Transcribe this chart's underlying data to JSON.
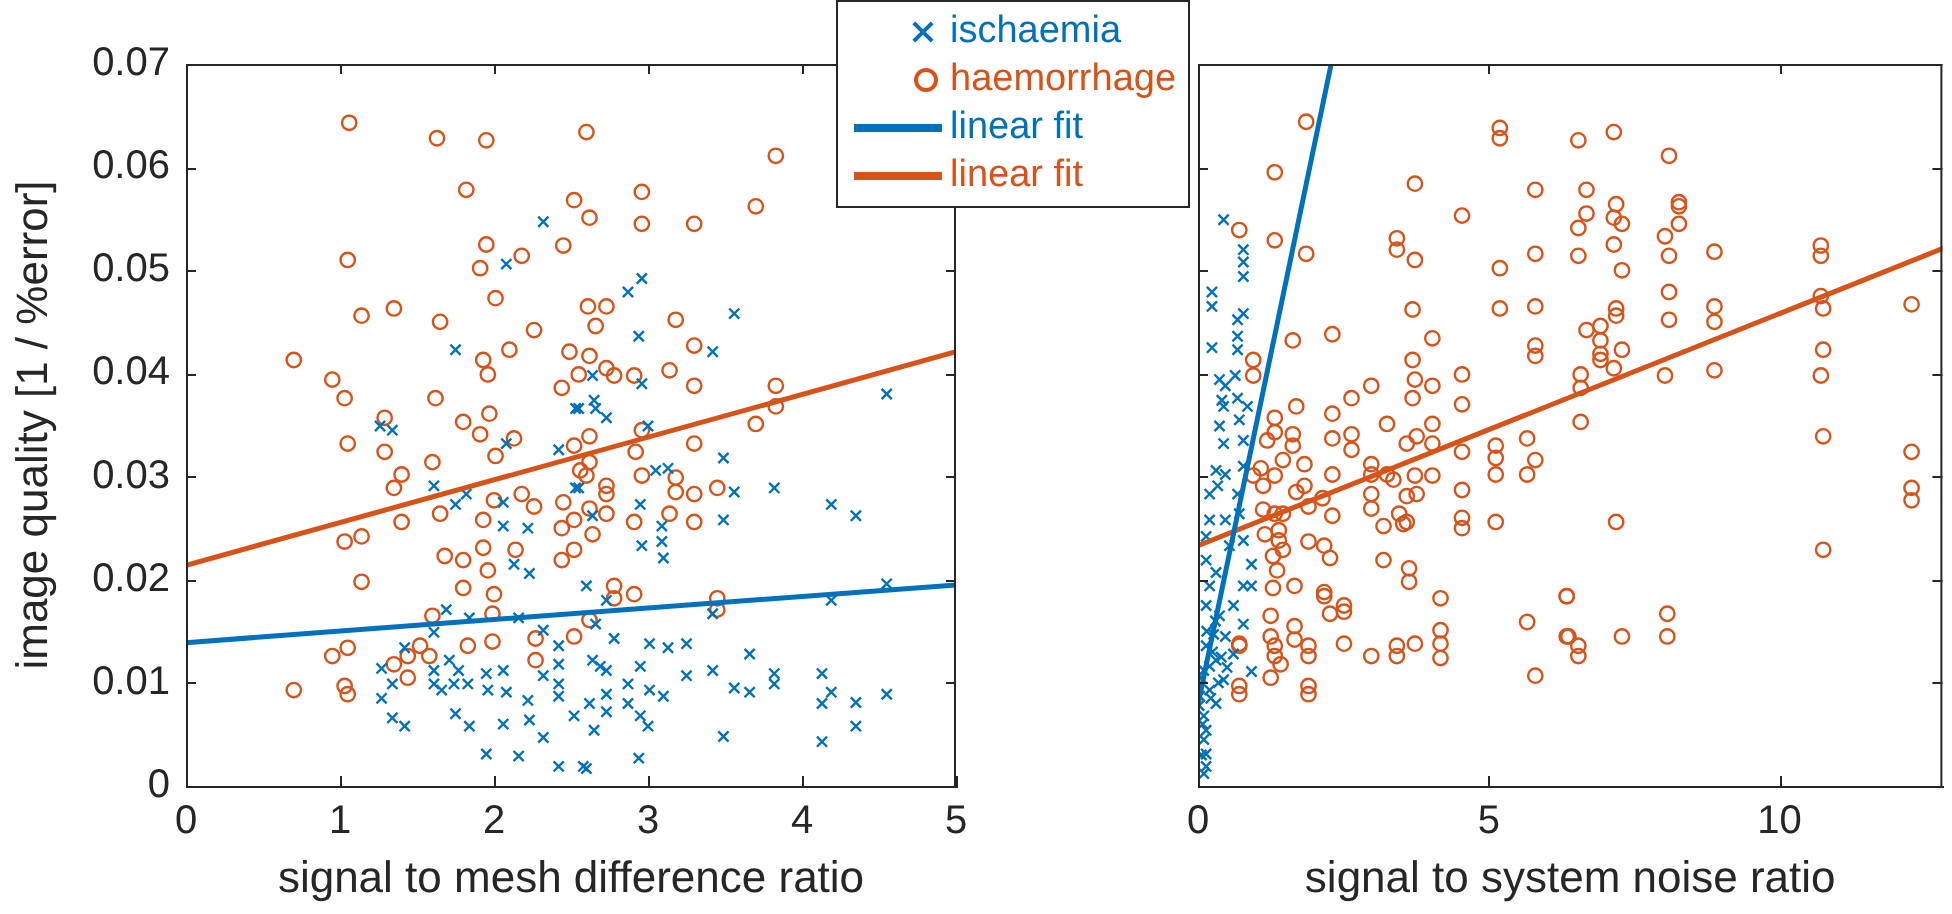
{
  "chart_data": [
    {
      "type": "scatter",
      "xlabel": "signal to mesh difference ratio",
      "ylabel": "image quality [1 / %error]",
      "xlim": [
        0,
        5
      ],
      "xticks": [
        0,
        1,
        2,
        3,
        4,
        5
      ],
      "ylim": [
        0,
        0.07
      ],
      "yticks": [
        0,
        0.01,
        0.02,
        0.03,
        0.04,
        0.05,
        0.06,
        0.07
      ],
      "legend": "top right",
      "series": [
        {
          "name": "ischaemia",
          "color": "#0072bd",
          "marker": "cross",
          "x": [
            2.32,
            2.08,
            1.75,
            1.26,
            1.34,
            2.08,
            1.61,
            1.75,
            1.82,
            2.06,
            2.06,
            2.22,
            2.13,
            2.23,
            1.69,
            1.61,
            1.84,
            2.16,
            2.32,
            1.42,
            1.27,
            1.34,
            1.27,
            1.34,
            1.42,
            1.61,
            1.61,
            1.66,
            1.71,
            1.74,
            1.83,
            1.77,
            1.75,
            1.84,
            1.95,
            1.96,
            2.06,
            2.08,
            2.06,
            1.95,
            2.16,
            2.22,
            2.23,
            2.32,
            2.32,
            2.42,
            2.42,
            2.42,
            2.42,
            2.42,
            2.52,
            2.53,
            2.53,
            2.42,
            2.96,
            2.87,
            3.56,
            2.94,
            3.42,
            2.64,
            2.96,
            2.55,
            2.65,
            2.66,
            2.73,
            4.55,
            3.0,
            3.49,
            3.05,
            3.13,
            2.55,
            3.56,
            3.82,
            2.95,
            4.19,
            4.35,
            2.64,
            3.49,
            3.09,
            2.96,
            3.09,
            3.1,
            2.6,
            2.73,
            4.55,
            4.19,
            3.42,
            2.66,
            2.78,
            3.01,
            3.13,
            3.25,
            2.64,
            2.69,
            2.73,
            2.95,
            3.66,
            3.25,
            3.42,
            2.87,
            3.82,
            3.82,
            4.13,
            3.01,
            3.1,
            3.56,
            3.66,
            4.19,
            4.55,
            2.73,
            2.87,
            2.62,
            2.95,
            3.0,
            2.73,
            2.65,
            4.13,
            4.35,
            4.35,
            3.49,
            4.13,
            2.94,
            2.6,
            2.58
          ],
          "values": [
            0.0547,
            0.0506,
            0.0423,
            0.0349,
            0.0345,
            0.0332,
            0.0291,
            0.0273,
            0.0283,
            0.0275,
            0.0252,
            0.025,
            0.0215,
            0.0206,
            0.0171,
            0.0149,
            0.0163,
            0.0163,
            0.0151,
            0.0134,
            0.0114,
            0.0099,
            0.0085,
            0.0066,
            0.0058,
            0.0112,
            0.0099,
            0.0093,
            0.0122,
            0.0099,
            0.0099,
            0.0112,
            0.007,
            0.0058,
            0.0109,
            0.0093,
            0.0112,
            0.0091,
            0.006,
            0.0031,
            0.0029,
            0.0083,
            0.0064,
            0.0047,
            0.0107,
            0.0136,
            0.0118,
            0.0099,
            0.0087,
            0.0019,
            0.0068,
            0.0366,
            0.0289,
            0.0326,
            0.0492,
            0.0479,
            0.0458,
            0.0436,
            0.0421,
            0.0398,
            0.039,
            0.0366,
            0.0374,
            0.0366,
            0.0357,
            0.038,
            0.0349,
            0.0318,
            0.0306,
            0.0308,
            0.0289,
            0.0285,
            0.0289,
            0.0273,
            0.0273,
            0.0262,
            0.0262,
            0.0258,
            0.0252,
            0.0233,
            0.0237,
            0.0221,
            0.0194,
            0.018,
            0.0196,
            0.018,
            0.0167,
            0.0157,
            0.0143,
            0.0138,
            0.0134,
            0.0138,
            0.0122,
            0.0116,
            0.0112,
            0.0116,
            0.0128,
            0.0107,
            0.0112,
            0.0099,
            0.0109,
            0.0099,
            0.0109,
            0.0093,
            0.0087,
            0.0095,
            0.0091,
            0.0091,
            0.0089,
            0.0089,
            0.008,
            0.008,
            0.0068,
            0.0058,
            0.0072,
            0.0054,
            0.008,
            0.0081,
            0.0058,
            0.0048,
            0.0043,
            0.0027,
            0.0017,
            0.0019
          ]
        },
        {
          "name": "haemorrhage",
          "color": "#d95319",
          "marker": "circle",
          "x": [
            1.06,
            1.63,
            1.95,
            1.82,
            2.52,
            1.95,
            2.45,
            2.18,
            1.05,
            1.91,
            2.01,
            1.14,
            1.35,
            1.65,
            2.26,
            0.7,
            1.93,
            2.1,
            0.95,
            1.96,
            1.03,
            1.62,
            2.44,
            1.8,
            1.97,
            1.29,
            1.05,
            1.29,
            1.6,
            1.91,
            2.01,
            2.13,
            2.52,
            1.35,
            1.4,
            2.18,
            2.0,
            2.26,
            1.65,
            1.4,
            1.93,
            2.45,
            2.44,
            1.03,
            1.14,
            1.93,
            1.68,
            2.14,
            1.8,
            2.44,
            1.96,
            1.14,
            1.8,
            2.0,
            1.6,
            1.99,
            2.52,
            1.83,
            1.99,
            1.52,
            1.58,
            1.44,
            0.95,
            1.05,
            1.35,
            1.44,
            2.27,
            2.27,
            0.7,
            1.03,
            1.05,
            2.6,
            3.83,
            2.96,
            3.7,
            2.62,
            2.96,
            3.3,
            2.61,
            2.73,
            3.18,
            2.66,
            2.49,
            2.62,
            3.3,
            2.73,
            2.55,
            2.91,
            3.14,
            2.78,
            3.3,
            3.83,
            3.83,
            3.7,
            2.96,
            2.62,
            3.3,
            2.92,
            2.62,
            2.56,
            2.6,
            2.96,
            3.18,
            2.73,
            3.45,
            3.18,
            3.3,
            2.73,
            2.62,
            2.73,
            3.14,
            2.52,
            2.91,
            3.3,
            2.64,
            2.52,
            2.78,
            2.91,
            3.45,
            2.78,
            2.62,
            3.45
          ],
          "values": [
            0.0643,
            0.0628,
            0.0626,
            0.0578,
            0.0568,
            0.0525,
            0.0524,
            0.0514,
            0.051,
            0.0502,
            0.0473,
            0.0456,
            0.0463,
            0.045,
            0.0442,
            0.0413,
            0.0413,
            0.0423,
            0.0394,
            0.0399,
            0.0376,
            0.0376,
            0.0386,
            0.0353,
            0.0361,
            0.0357,
            0.0332,
            0.0324,
            0.0314,
            0.0341,
            0.032,
            0.0337,
            0.033,
            0.0289,
            0.0302,
            0.0283,
            0.0277,
            0.0271,
            0.0264,
            0.0256,
            0.0258,
            0.0275,
            0.025,
            0.0237,
            0.0242,
            0.0231,
            0.0223,
            0.0229,
            0.0219,
            0.0219,
            0.0209,
            0.0198,
            0.0192,
            0.0186,
            0.0165,
            0.0167,
            0.0145,
            0.0136,
            0.014,
            0.0136,
            0.0126,
            0.0126,
            0.0126,
            0.0134,
            0.0118,
            0.0105,
            0.0143,
            0.0122,
            0.0093,
            0.0097,
            0.0089,
            0.0634,
            0.0611,
            0.0576,
            0.0562,
            0.0551,
            0.0545,
            0.0545,
            0.0465,
            0.0465,
            0.0452,
            0.0446,
            0.0421,
            0.0417,
            0.0427,
            0.0405,
            0.0399,
            0.0398,
            0.0403,
            0.0398,
            0.0388,
            0.0388,
            0.0368,
            0.0351,
            0.0345,
            0.0339,
            0.0332,
            0.0324,
            0.0314,
            0.0306,
            0.0301,
            0.0301,
            0.0299,
            0.0291,
            0.0289,
            0.0285,
            0.0283,
            0.0283,
            0.0269,
            0.0264,
            0.0264,
            0.0258,
            0.0256,
            0.0256,
            0.0244,
            0.0229,
            0.0194,
            0.0186,
            0.0182,
            0.0182,
            0.0161,
            0.0171
          ]
        },
        {
          "name": "linear fit",
          "type": "line",
          "color": "#0072bd",
          "marker": "none",
          "x": [
            0,
            5
          ],
          "values": [
            0.0139,
            0.0195
          ]
        },
        {
          "name": "linear fit",
          "type": "line",
          "color": "#d95319",
          "marker": "none",
          "x": [
            0,
            5
          ],
          "values": [
            0.0214,
            0.0421
          ]
        }
      ]
    },
    {
      "type": "scatter",
      "xlabel": "signal to system noise ratio",
      "xlim": [
        0,
        12.8
      ],
      "xticks": [
        0,
        5,
        10
      ],
      "ylim": [
        0,
        0.07
      ],
      "yticks": [
        0,
        0.01,
        0.02,
        0.03,
        0.04,
        0.05,
        0.06,
        0.07
      ],
      "tick_labels": "x",
      "series": [
        {
          "color": "#0072bd",
          "marker": "cross",
          "x": [
            0.44,
            0.78,
            0.78,
            0.78,
            0.24,
            0.24,
            0.78,
            0.68,
            0.68,
            0.24,
            0.68,
            0.37,
            0.47,
            0.64,
            0.41,
            0.44,
            0.68,
            0.85,
            0.71,
            0.37,
            0.44,
            0.78,
            0.31,
            0.47,
            0.78,
            0.2,
            0.34,
            0.68,
            0.2,
            0.47,
            0.71,
            0.78,
            0.14,
            0.54,
            0.92,
            0.14,
            0.31,
            0.2,
            0.78,
            0.92,
            0.14,
            0.61,
            0.37,
            0.78,
            0.27,
            0.47,
            0.14,
            0.61,
            0.31,
            0.92,
            0.1,
            0.44,
            0.2,
            0.03,
            0.31,
            0.1,
            0.14,
            0.1,
            0.14,
            0.14,
            0.1,
            0.2,
            0.02,
            0.05,
            0.25,
            0.35,
            0.15,
            0.4,
            0.08,
            0.3,
            0.5,
            0.22,
            0.06
          ],
          "values": [
            0.0549,
            0.052,
            0.0508,
            0.0494,
            0.0479,
            0.0465,
            0.0458,
            0.0452,
            0.0436,
            0.0425,
            0.0423,
            0.0394,
            0.0388,
            0.0398,
            0.0374,
            0.0368,
            0.0376,
            0.0368,
            0.0355,
            0.0349,
            0.0332,
            0.0335,
            0.0306,
            0.0302,
            0.031,
            0.0283,
            0.0291,
            0.0283,
            0.0258,
            0.0258,
            0.0264,
            0.0238,
            0.0242,
            0.0233,
            0.0215,
            0.0219,
            0.0207,
            0.0194,
            0.0194,
            0.0194,
            0.0175,
            0.0175,
            0.0165,
            0.0157,
            0.0147,
            0.0145,
            0.0136,
            0.0128,
            0.0122,
            0.0111,
            0.0112,
            0.0103,
            0.0093,
            0.0087,
            0.008,
            0.0068,
            0.0054,
            0.0045,
            0.0031,
            0.0019,
            0.0012,
            0.0116,
            0.0078,
            0.0105,
            0.013,
            0.01,
            0.015,
            0.0125,
            0.006,
            0.016,
            0.0115,
            0.0085,
            0.003
          ]
        },
        {
          "color": "#d95319",
          "marker": "circle",
          "x": [
            1.86,
            5.19,
            5.19,
            1.32,
            3.73,
            5.8,
            4.54,
            0.71,
            1.32,
            3.42,
            3.42,
            1.86,
            3.73,
            5.8,
            5.19,
            3.69,
            5.19,
            5.8,
            2.31,
            1.63,
            4.03,
            5.8,
            5.8,
            0.95,
            0.95,
            3.69,
            3.73,
            4.54,
            2.98,
            4.03,
            3.69,
            2.64,
            4.54,
            1.69,
            1.32,
            2.31,
            3.25,
            4.03,
            1.32,
            1.63,
            2.64,
            2.64,
            1.19,
            3.76,
            3.59,
            4.03,
            1.63,
            2.31,
            5.66,
            5.12,
            5.12,
            5.8,
            1.46,
            1.83,
            2.98,
            4.54,
            1.08,
            1.32,
            2.31,
            2.98,
            3.25,
            3.36,
            3.73,
            4.03,
            5.12,
            5.66,
            0.95,
            1.12,
            1.83,
            1.69,
            2.14,
            2.98,
            3.59,
            3.76,
            2.31,
            2.98,
            3.46,
            4.54,
            1.12,
            1.32,
            1.46,
            1.9,
            1.15,
            1.39,
            3.59,
            3.19,
            3.53,
            4.54,
            4.54,
            5.12,
            1.39,
            1.46,
            1.9,
            2.17,
            1.29,
            2.27,
            3.19,
            1.36,
            3.63,
            3.63,
            1.66,
            1.29,
            2.17,
            2.17,
            4.17,
            2.51,
            2.51,
            2.27,
            1.25,
            5.66,
            6.34,
            1.66,
            4.17,
            1.25,
            1.66,
            4.17,
            2.51,
            3.42,
            3.73,
            6.37,
            1.9,
            1.32,
            0.71,
            2.98,
            3.42,
            1.32,
            1.9,
            4.17,
            1.42,
            1.25,
            5.8,
            1.9,
            1.9,
            0.71,
            0.71,
            0.71,
            6.54,
            7.15,
            8.1,
            6.68,
            7.19,
            8.27,
            8.27,
            6.68,
            7.15,
            7.29,
            8.27,
            6.54,
            8.03,
            7.15,
            10.71,
            6.54,
            8.1,
            8.88,
            10.71,
            7.29,
            8.1,
            10.71,
            10.75,
            7.19,
            7.19,
            8.88,
            12.27,
            8.1,
            8.88,
            6.68,
            6.92,
            6.92,
            7.29,
            10.75,
            6.92,
            6.92,
            7.15,
            8.03,
            8.88,
            10.71,
            6.58,
            6.58,
            6.58,
            10.75,
            12.27,
            12.27,
            12.27,
            7.19,
            10.75,
            6.34,
            8.07,
            6.34,
            7.29,
            8.07,
            6.54,
            6.54
          ],
          "values": [
            0.0644,
            0.0638,
            0.0628,
            0.0595,
            0.0584,
            0.0578,
            0.0553,
            0.0539,
            0.0529,
            0.0531,
            0.052,
            0.0516,
            0.051,
            0.0516,
            0.0502,
            0.0462,
            0.0463,
            0.0465,
            0.0438,
            0.0432,
            0.0434,
            0.0427,
            0.0417,
            0.0413,
            0.0398,
            0.0413,
            0.0394,
            0.0399,
            0.0388,
            0.0388,
            0.0376,
            0.0376,
            0.037,
            0.0368,
            0.0357,
            0.0361,
            0.0351,
            0.0351,
            0.0343,
            0.0341,
            0.0341,
            0.0326,
            0.0335,
            0.0339,
            0.0332,
            0.0332,
            0.033,
            0.0337,
            0.0337,
            0.033,
            0.0318,
            0.0316,
            0.0316,
            0.0312,
            0.0312,
            0.0324,
            0.0308,
            0.0301,
            0.0302,
            0.0302,
            0.0302,
            0.0297,
            0.0301,
            0.0301,
            0.0302,
            0.0302,
            0.0301,
            0.0291,
            0.0291,
            0.0285,
            0.0279,
            0.0283,
            0.0281,
            0.0283,
            0.0262,
            0.0269,
            0.0264,
            0.0287,
            0.0268,
            0.0264,
            0.0264,
            0.0271,
            0.0244,
            0.0248,
            0.0256,
            0.0252,
            0.0254,
            0.026,
            0.025,
            0.0256,
            0.0238,
            0.0229,
            0.0237,
            0.0233,
            0.0223,
            0.0221,
            0.0219,
            0.0209,
            0.0211,
            0.0198,
            0.0194,
            0.0192,
            0.0188,
            0.0184,
            0.0182,
            0.0175,
            0.0169,
            0.0167,
            0.0165,
            0.0159,
            0.0184,
            0.0155,
            0.0151,
            0.0145,
            0.0142,
            0.0138,
            0.0138,
            0.0136,
            0.0138,
            0.0145,
            0.0136,
            0.0136,
            0.0136,
            0.0126,
            0.0126,
            0.0126,
            0.0126,
            0.0124,
            0.0118,
            0.0105,
            0.0107,
            0.0097,
            0.0089,
            0.0097,
            0.0089,
            0.0138,
            0.0626,
            0.0634,
            0.0611,
            0.0578,
            0.0564,
            0.0566,
            0.0562,
            0.0555,
            0.0551,
            0.0545,
            0.0545,
            0.0541,
            0.0533,
            0.0525,
            0.0524,
            0.0514,
            0.0514,
            0.0518,
            0.0514,
            0.05,
            0.0479,
            0.0475,
            0.0463,
            0.0463,
            0.0456,
            0.0465,
            0.0467,
            0.0452,
            0.045,
            0.0442,
            0.0446,
            0.0432,
            0.0423,
            0.0423,
            0.0419,
            0.0413,
            0.0405,
            0.0398,
            0.0403,
            0.0398,
            0.0399,
            0.0386,
            0.0353,
            0.0339,
            0.0324,
            0.0289,
            0.0277,
            0.0256,
            0.0229,
            0.0184,
            0.0167,
            0.0145,
            0.0145,
            0.0145,
            0.0136,
            0.0126
          ]
        },
        {
          "type": "line",
          "color": "#0072bd",
          "marker": "none",
          "x": [
            0,
            2.29
          ],
          "values": [
            0.0079,
            0.07
          ]
        },
        {
          "type": "line",
          "color": "#d95319",
          "marker": "none",
          "x": [
            0,
            12.8
          ],
          "values": [
            0.0233,
            0.0521
          ]
        }
      ]
    }
  ]
}
